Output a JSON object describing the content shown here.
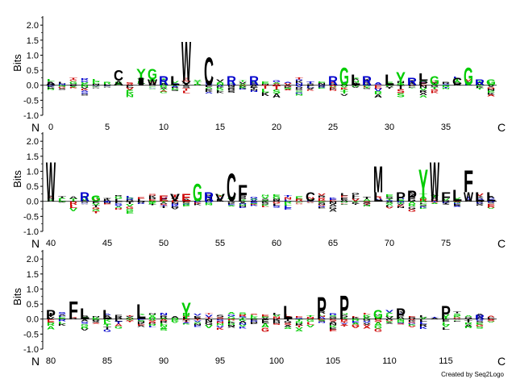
{
  "chart_data": {
    "type": "sequence-logo",
    "ylabel": "Bits",
    "ylim": [
      -1.0,
      2.3
    ],
    "yticks": [
      "2.0",
      "1.5",
      "1.0",
      "0.5",
      "0.0",
      "-0.5",
      "-1.0"
    ],
    "n_label": "N",
    "c_label": "C",
    "credit": "Created by Seq2Logo",
    "colors": {
      "W": "#000000",
      "C": "#000000",
      "F": "#000000",
      "L": "#000000",
      "M": "#000000",
      "P": "#000000",
      "A": "#000000",
      "V": "#000000",
      "I": "#000000",
      "G": "#00cc00",
      "Y": "#00cc00",
      "S": "#00cc00",
      "T": "#00cc00",
      "N": "#00cc00",
      "Q": "#00cc00",
      "R": "#0000cc",
      "K": "#0000cc",
      "H": "#0000cc",
      "E": "#cc0000",
      "D": "#cc0000"
    },
    "rows": [
      {
        "start": 0,
        "end": 39,
        "labels": [
          "0",
          "5",
          "10",
          "15",
          "20",
          "25",
          "30",
          "35"
        ],
        "positions": [
          {
            "pos": 0,
            "up": [
              [
                "A",
                0.1
              ]
            ]
          },
          {
            "pos": 6,
            "up": [
              [
                "A",
                0.15
              ],
              [
                "C",
                0.35
              ]
            ]
          },
          {
            "pos": 8,
            "up": [
              [
                "I",
                0.25
              ],
              [
                "Y",
                0.3
              ]
            ]
          },
          {
            "pos": 9,
            "up": [
              [
                "W",
                0.2
              ],
              [
                "G",
                0.35
              ]
            ]
          },
          {
            "pos": 10,
            "up": [
              [
                "R",
                0.3
              ]
            ]
          },
          {
            "pos": 11,
            "up": [
              [
                "L",
                0.3
              ]
            ]
          },
          {
            "pos": 12,
            "up": [
              [
                "V",
                0.15
              ],
              [
                "W",
                1.35
              ]
            ]
          },
          {
            "pos": 14,
            "up": [
              [
                "C",
                0.95
              ]
            ]
          },
          {
            "pos": 16,
            "up": [
              [
                "R",
                0.3
              ]
            ]
          },
          {
            "pos": 18,
            "up": [
              [
                "R",
                0.3
              ]
            ]
          },
          {
            "pos": 25,
            "up": [
              [
                "R",
                0.3
              ]
            ]
          },
          {
            "pos": 26,
            "up": [
              [
                "G",
                0.6
              ]
            ]
          },
          {
            "pos": 27,
            "up": [
              [
                "L",
                0.35
              ]
            ]
          },
          {
            "pos": 28,
            "up": [
              [
                "R",
                0.3
              ]
            ]
          },
          {
            "pos": 30,
            "up": [
              [
                "L",
                0.35
              ]
            ]
          },
          {
            "pos": 31,
            "up": [
              [
                "Y",
                0.45
              ]
            ]
          },
          {
            "pos": 32,
            "up": [
              [
                "R",
                0.25
              ]
            ]
          },
          {
            "pos": 33,
            "up": [
              [
                "P",
                0.15
              ],
              [
                "L",
                0.25
              ]
            ]
          },
          {
            "pos": 34,
            "up": [
              [
                "G",
                0.3
              ]
            ]
          },
          {
            "pos": 36,
            "up": [
              [
                "C",
                0.25
              ]
            ]
          },
          {
            "pos": 37,
            "up": [
              [
                "G",
                0.6
              ]
            ]
          },
          {
            "pos": 38,
            "up": [
              [
                "R",
                0.2
              ]
            ]
          },
          {
            "pos": 39,
            "up": [
              [
                "G",
                0.2
              ]
            ]
          }
        ]
      },
      {
        "start": 40,
        "end": 79,
        "labels": [
          "40",
          "45",
          "50",
          "55",
          "60",
          "65",
          "70",
          "75"
        ],
        "positions": [
          {
            "pos": 40,
            "up": [
              [
                "W",
                1.35
              ]
            ]
          },
          {
            "pos": 43,
            "up": [
              [
                "R",
                0.3
              ]
            ]
          },
          {
            "pos": 44,
            "up": [
              [
                "G",
                0.2
              ]
            ]
          },
          {
            "pos": 50,
            "up": [
              [
                "E",
                0.2
              ]
            ]
          },
          {
            "pos": 51,
            "up": [
              [
                "V",
                0.25
              ]
            ]
          },
          {
            "pos": 52,
            "up": [
              [
                "E",
                0.25
              ]
            ]
          },
          {
            "pos": 53,
            "up": [
              [
                "G",
                0.6
              ]
            ]
          },
          {
            "pos": 54,
            "up": [
              [
                "R",
                0.3
              ]
            ]
          },
          {
            "pos": 55,
            "up": [
              [
                "V",
                0.25
              ]
            ]
          },
          {
            "pos": 56,
            "up": [
              [
                "C",
                0.95
              ]
            ]
          },
          {
            "pos": 57,
            "up": [
              [
                "F",
                0.55
              ]
            ]
          },
          {
            "pos": 63,
            "up": [
              [
                "C",
                0.3
              ]
            ]
          },
          {
            "pos": 69,
            "up": [
              [
                "L",
                0.3
              ],
              [
                "M",
                0.9
              ]
            ]
          },
          {
            "pos": 71,
            "up": [
              [
                "P",
                0.3
              ]
            ]
          },
          {
            "pos": 72,
            "up": [
              [
                "P",
                0.35
              ]
            ]
          },
          {
            "pos": 73,
            "up": [
              [
                "Y",
                1.1
              ]
            ]
          },
          {
            "pos": 74,
            "up": [
              [
                "W",
                1.35
              ]
            ]
          },
          {
            "pos": 75,
            "up": [
              [
                "F",
                0.3
              ]
            ]
          },
          {
            "pos": 76,
            "up": [
              [
                "L",
                0.4
              ]
            ]
          },
          {
            "pos": 77,
            "up": [
              [
                "W",
                0.3
              ],
              [
                "F",
                0.75
              ]
            ]
          },
          {
            "pos": 78,
            "up": [
              [
                "L",
                0.3
              ]
            ]
          },
          {
            "pos": 79,
            "up": [
              [
                "L",
                0.3
              ]
            ]
          }
        ]
      },
      {
        "start": 80,
        "end": 119,
        "labels": [
          "80",
          "85",
          "90",
          "95",
          "100",
          "105",
          "110",
          "115"
        ],
        "positions": [
          {
            "pos": 80,
            "up": [
              [
                "P",
                0.3
              ]
            ]
          },
          {
            "pos": 82,
            "up": [
              [
                "F",
                0.6
              ]
            ]
          },
          {
            "pos": 83,
            "up": [
              [
                "L",
                0.35
              ]
            ]
          },
          {
            "pos": 85,
            "up": [
              [
                "L",
                0.3
              ]
            ]
          },
          {
            "pos": 88,
            "up": [
              [
                "L",
                0.5
              ]
            ]
          },
          {
            "pos": 92,
            "up": [
              [
                "Y",
                0.55
              ]
            ]
          },
          {
            "pos": 101,
            "up": [
              [
                "L",
                0.45
              ]
            ]
          },
          {
            "pos": 104,
            "up": [
              [
                "P",
                0.75
              ]
            ]
          },
          {
            "pos": 106,
            "up": [
              [
                "P",
                0.8
              ]
            ]
          },
          {
            "pos": 109,
            "up": [
              [
                "G",
                0.3
              ]
            ]
          },
          {
            "pos": 111,
            "up": [
              [
                "P",
                0.35
              ]
            ]
          },
          {
            "pos": 115,
            "up": [
              [
                "P",
                0.45
              ]
            ]
          },
          {
            "pos": 118,
            "up": [
              [
                "R",
                0.15
              ]
            ]
          }
        ]
      }
    ]
  }
}
